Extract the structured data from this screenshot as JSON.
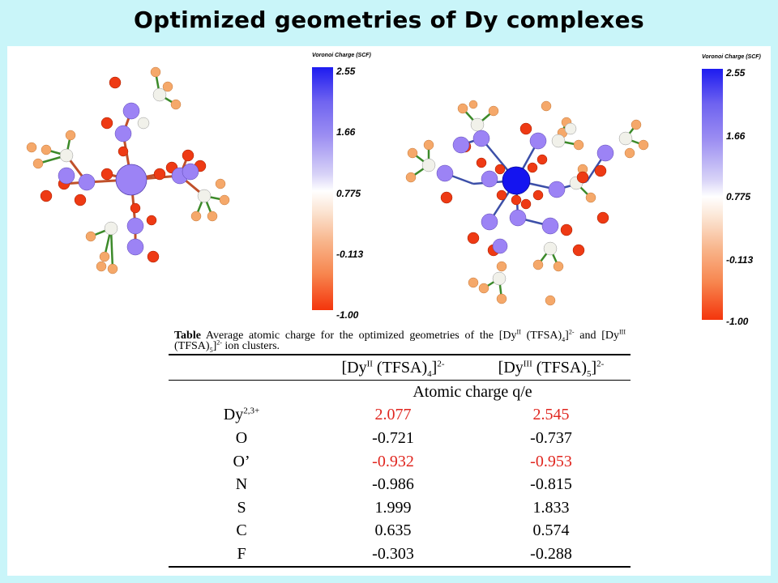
{
  "slide": {
    "title": "Optimized geometries of Dy complexes"
  },
  "colorbar": {
    "title": "Voronoi Charge (SCF)",
    "ticks": [
      "2.55",
      "1.66",
      "0.775",
      "-0.113",
      "-1.00"
    ],
    "colors": {
      "max": "#1d1bf0",
      "mid": "#ffffff",
      "min": "#f4350c"
    }
  },
  "molecules": [
    {
      "label": "",
      "central_atom_color": "#9c83f5"
    },
    {
      "label": "",
      "central_atom_color": "#1414f0"
    }
  ],
  "caption": {
    "lead": "Table",
    "t1": " Average atomic charge for the optimized geometries of the [Dy",
    "sup1": "II",
    "t2": " (TFSA)",
    "sub1": "4",
    "t3": "]",
    "sup2": "2-",
    "t4": " and [Dy",
    "sup3": "III",
    "t5": " (TFSA)",
    "sub2": "5",
    "t6": "]",
    "sup4": "2-",
    "t7": " ion clusters."
  },
  "table": {
    "col1": {
      "pre": "[Dy",
      "sup": "II",
      "mid": " (TFSA)",
      "sub": "4",
      "close": "]",
      "charge": "2-"
    },
    "col2": {
      "pre": "[Dy",
      "sup": "III",
      "mid": " (TFSA)",
      "sub": "5",
      "close": "]",
      "charge": "2-"
    },
    "unit_row": "Atomic charge q/e",
    "rows": [
      {
        "atom": "Dy",
        "atom_sup": "2,3+",
        "v1": "2.077",
        "v2": "2.545",
        "highlight": true
      },
      {
        "atom": "O",
        "atom_sup": "",
        "v1": "-0.721",
        "v2": "-0.737",
        "highlight": false
      },
      {
        "atom": "O’",
        "atom_sup": "",
        "v1": "-0.932",
        "v2": "-0.953",
        "highlight": true
      },
      {
        "atom": "N",
        "atom_sup": "",
        "v1": "-0.986",
        "v2": "-0.815",
        "highlight": false
      },
      {
        "atom": "S",
        "atom_sup": "",
        "v1": "1.999",
        "v2": "1.833",
        "highlight": false
      },
      {
        "atom": "C",
        "atom_sup": "",
        "v1": "0.635",
        "v2": "0.574",
        "highlight": false
      },
      {
        "atom": "F",
        "atom_sup": "",
        "v1": "-0.303",
        "v2": "-0.288",
        "highlight": false
      }
    ],
    "highlight_color": "#e0261f"
  }
}
